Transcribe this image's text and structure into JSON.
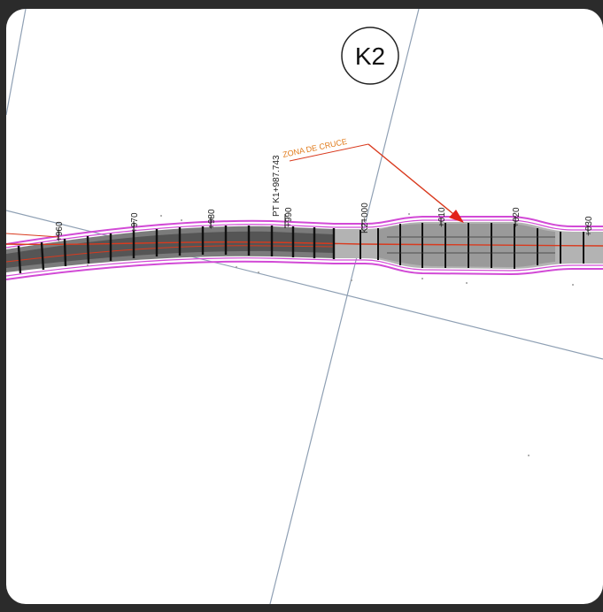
{
  "sheet_label": "K2",
  "annotation": "ZONA DE CRUCE",
  "station_main": "PT K1+987.743",
  "stations": [
    "+960",
    "+970",
    "+980",
    "+990",
    "K2+000",
    "+010",
    "+020",
    "+030"
  ],
  "colors": {
    "background": "#2b2b2b",
    "paper": "#ffffff",
    "road_fill": "#9c9c9c",
    "road_dark": "#6a6a6a",
    "border_magenta": "#d24ad6",
    "centerline_red": "#d93a1e",
    "annotation_orange": "#e07a1a",
    "grid_blue": "#7f93aa"
  }
}
